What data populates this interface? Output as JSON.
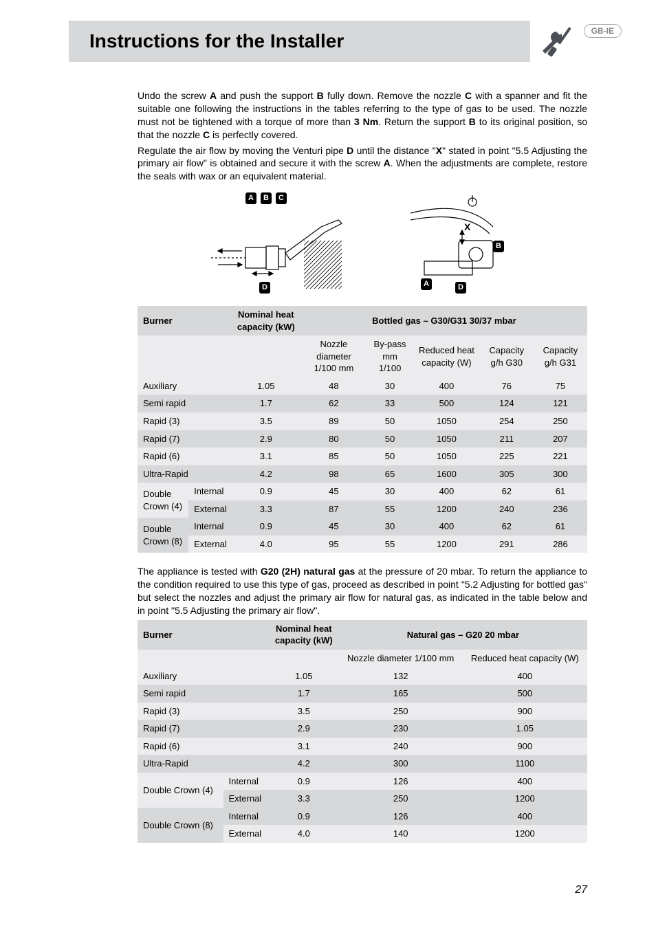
{
  "header": {
    "title": "Instructions for the Installer",
    "badge": "GB-IE"
  },
  "colors": {
    "header_bg": "#d7d8da",
    "row_dark": "#d7d8da",
    "row_light": "#ececee",
    "text": "#000000",
    "page_bg": "#ffffff"
  },
  "body_text": {
    "p1a": "Undo the screw ",
    "p1b": " and push the support ",
    "p1c": " fully down. Remove the nozzle ",
    "p1d": " with a spanner and fit the suitable one following the instructions in the tables referring to the type of gas to be used. The nozzle must not be tightened with a torque of more than ",
    "p1e": ". Return the support ",
    "p1f": " to its original position, so that the nozzle ",
    "p1g": " is perfectly covered.",
    "p2a": "Regulate the air flow by moving the Venturi pipe ",
    "p2b": " until the distance \"",
    "p2c": "\" stated in point \"5.5 Adjusting the primary air flow\" is obtained and secure it with the screw ",
    "p2d": ". When the adjustments are complete, restore the seals with wax or an equivalent material.",
    "bold_A": "A",
    "bold_B": "B",
    "bold_C": "C",
    "bold_D": "D",
    "bold_X": "X",
    "bold_3Nm": "3 Nm",
    "para3": "The appliance is tested with G20 (2H) natural gas at the pressure of 20 mbar. To return the appliance to the condition required to use this type of gas, proceed as described in point \"5.2 Adjusting for bottled gas\" but select the nozzles and adjust the primary air flow for natural gas, as indicated in the table below and in point \"5.5 Adjusting the primary air flow\".",
    "bold_g20": "G20 (2H) natural gas"
  },
  "diagram_labels": [
    "A",
    "B",
    "C",
    "D",
    "X"
  ],
  "table1": {
    "header_burner": "Burner",
    "header_nominal": "Nominal heat capacity (kW)",
    "header_gas_a": "Bottled gas – G30/G31",
    "header_gas_b": " 30/37 mbar",
    "sub_headers": [
      "Nozzle diameter 1/100 mm",
      "By-pass mm 1/100",
      "Reduced heat capacity (W)",
      "Capacity g/h G30",
      "Capacity g/h G31"
    ],
    "rows": [
      {
        "burner": "Auxiliary",
        "sub": "",
        "kw": "1.05",
        "v": [
          "48",
          "30",
          "400",
          "76",
          "75"
        ],
        "shade": "light"
      },
      {
        "burner": "Semi rapid",
        "sub": "",
        "kw": "1.7",
        "v": [
          "62",
          "33",
          "500",
          "124",
          "121"
        ],
        "shade": "dark"
      },
      {
        "burner": "Rapid (3)",
        "sub": "",
        "kw": "3.5",
        "v": [
          "89",
          "50",
          "1050",
          "254",
          "250"
        ],
        "shade": "light"
      },
      {
        "burner": "Rapid (7)",
        "sub": "",
        "kw": "2.9",
        "v": [
          "80",
          "50",
          "1050",
          "211",
          "207"
        ],
        "shade": "dark"
      },
      {
        "burner": "Rapid (6)",
        "sub": "",
        "kw": "3.1",
        "v": [
          "85",
          "50",
          "1050",
          "225",
          "221"
        ],
        "shade": "light"
      },
      {
        "burner": "Ultra-Rapid",
        "sub": "",
        "kw": "4.2",
        "v": [
          "98",
          "65",
          "1600",
          "305",
          "300"
        ],
        "shade": "dark"
      },
      {
        "burner": "Double Crown (4)",
        "sub": "Internal",
        "kw": "0.9",
        "v": [
          "45",
          "30",
          "400",
          "62",
          "61"
        ],
        "shade": "light",
        "rowspan": 2
      },
      {
        "burner": "",
        "sub": "External",
        "kw": "3.3",
        "v": [
          "87",
          "55",
          "1200",
          "240",
          "236"
        ],
        "shade": "dark"
      },
      {
        "burner": "Double Crown (8)",
        "sub": "Internal",
        "kw": "0.9",
        "v": [
          "45",
          "30",
          "400",
          "62",
          "61"
        ],
        "shade": "dark",
        "rowspan": 2
      },
      {
        "burner": "",
        "sub": "External",
        "kw": "4.0",
        "v": [
          "95",
          "55",
          "1200",
          "291",
          "286"
        ],
        "shade": "light"
      }
    ]
  },
  "table2": {
    "header_burner": "Burner",
    "header_nominal": "Nominal heat capacity (kW)",
    "header_gas_a": "Natural gas – G20",
    "header_gas_b": " 20 mbar",
    "sub_headers": [
      "Nozzle diameter 1/100 mm",
      "Reduced heat capacity (W)"
    ],
    "rows": [
      {
        "burner": "Auxiliary",
        "sub": "",
        "kw": "1.05",
        "v": [
          "132",
          "400"
        ],
        "shade": "light"
      },
      {
        "burner": "Semi rapid",
        "sub": "",
        "kw": "1.7",
        "v": [
          "165",
          "500"
        ],
        "shade": "dark"
      },
      {
        "burner": "Rapid (3)",
        "sub": "",
        "kw": "3.5",
        "v": [
          "250",
          "900"
        ],
        "shade": "light"
      },
      {
        "burner": "Rapid (7)",
        "sub": "",
        "kw": "2.9",
        "v": [
          "230",
          "1.05"
        ],
        "shade": "dark"
      },
      {
        "burner": "Rapid (6)",
        "sub": "",
        "kw": "3.1",
        "v": [
          "240",
          "900"
        ],
        "shade": "light"
      },
      {
        "burner": "Ultra-Rapid",
        "sub": "",
        "kw": "4.2",
        "v": [
          "300",
          "1100"
        ],
        "shade": "dark"
      },
      {
        "burner": "Double Crown (4)",
        "sub": "Internal",
        "kw": "0.9",
        "v": [
          "126",
          "400"
        ],
        "shade": "light",
        "rowspan": 2
      },
      {
        "burner": "",
        "sub": "External",
        "kw": "3.3",
        "v": [
          "250",
          "1200"
        ],
        "shade": "dark"
      },
      {
        "burner": "Double Crown (8)",
        "sub": "Internal",
        "kw": "0.9",
        "v": [
          "126",
          "400"
        ],
        "shade": "dark",
        "rowspan": 2
      },
      {
        "burner": "",
        "sub": "External",
        "kw": "4.0",
        "v": [
          "140",
          "1200"
        ],
        "shade": "light"
      }
    ]
  },
  "page_number": "27"
}
